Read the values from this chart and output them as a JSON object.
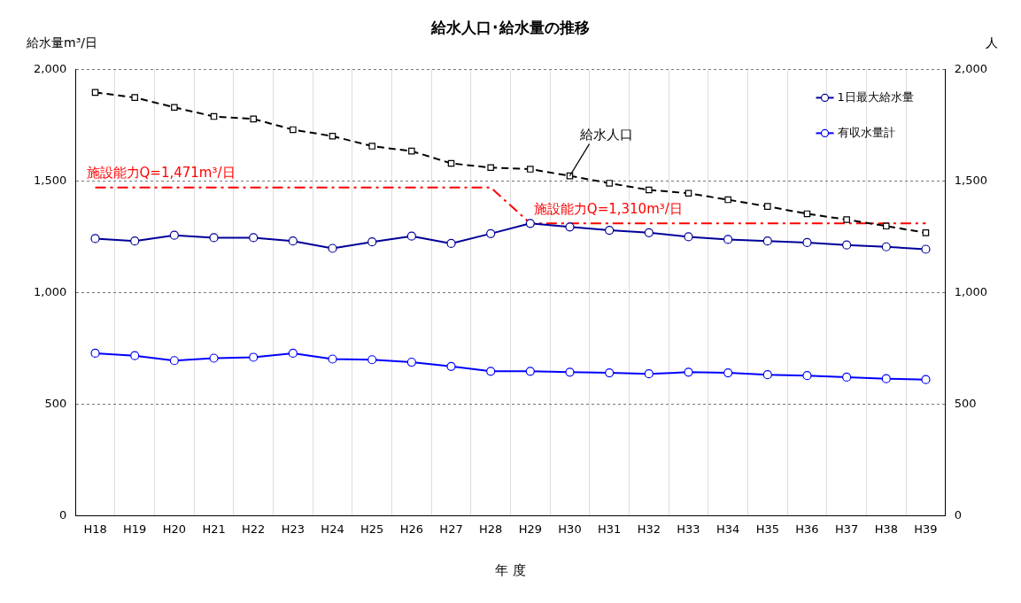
{
  "chart_data": {
    "type": "line",
    "title": "給水人口･給水量の推移",
    "xlabel": "年 度",
    "ylabel": "給水量m³/日",
    "y2label": "人",
    "categories": [
      "H18",
      "H19",
      "H20",
      "H21",
      "H22",
      "H23",
      "H24",
      "H25",
      "H26",
      "H27",
      "H28",
      "H29",
      "H30",
      "H31",
      "H32",
      "H33",
      "H34",
      "H35",
      "H36",
      "H37",
      "H38",
      "H39"
    ],
    "series": [
      {
        "name": "1日最大給水量",
        "color": "#000099",
        "marker": "circle",
        "line_style": "solid",
        "values": [
          1242,
          1231,
          1257,
          1246,
          1246,
          1231,
          1198,
          1227,
          1253,
          1220,
          1264,
          1310,
          1294,
          1279,
          1268,
          1250,
          1238,
          1231,
          1224,
          1213,
          1205,
          1194
        ]
      },
      {
        "name": "有収水量計",
        "color": "#0000ff",
        "marker": "circle",
        "line_style": "solid",
        "values": [
          728,
          717,
          695,
          706,
          710,
          728,
          702,
          699,
          688,
          669,
          647,
          647,
          643,
          640,
          636,
          643,
          640,
          632,
          628,
          621,
          614,
          610
        ]
      },
      {
        "color": "#000000",
        "marker": "square",
        "line_style": "dashed",
        "axis": "y2",
        "values": [
          1897,
          1874,
          1830,
          1789,
          1778,
          1730,
          1701,
          1656,
          1634,
          1579,
          1560,
          1553,
          1523,
          1490,
          1460,
          1445,
          1416,
          1386,
          1353,
          1327,
          1298,
          1268
        ]
      },
      {
        "color": "#ff0000",
        "marker": "none",
        "line_style": "dashed",
        "values": [
          1471,
          1471,
          1471,
          1471,
          1471,
          1471,
          1471,
          1471,
          1471,
          1471,
          1471,
          1310,
          1310,
          1310,
          1310,
          1310,
          1310,
          1310,
          1310,
          1310,
          1310,
          1310
        ]
      }
    ],
    "ylim": [
      0,
      2000
    ],
    "yticks": [
      0,
      500,
      {
        "value": 1000,
        "label": "1,000"
      },
      {
        "value": 1500,
        "label": "1,500"
      },
      {
        "value": 2000,
        "label": "2,000"
      }
    ],
    "y2lim": [
      0,
      2000
    ],
    "y2ticks": [
      0,
      500,
      {
        "value": 1000,
        "label": "1,000"
      },
      {
        "value": 1500,
        "label": "1,500"
      },
      {
        "value": 2000,
        "label": "2,000"
      }
    ],
    "annotations": [
      {
        "text": "施設能力Q=1,471m³/日",
        "x": "H18",
        "y": 1471
      },
      {
        "text": "施設能力Q=1,310m³/日",
        "x": "H29",
        "y": 1310
      },
      {
        "text": "給水人口",
        "x": "H30",
        "y": 1523
      }
    ],
    "grid": true,
    "legend": "top right"
  }
}
